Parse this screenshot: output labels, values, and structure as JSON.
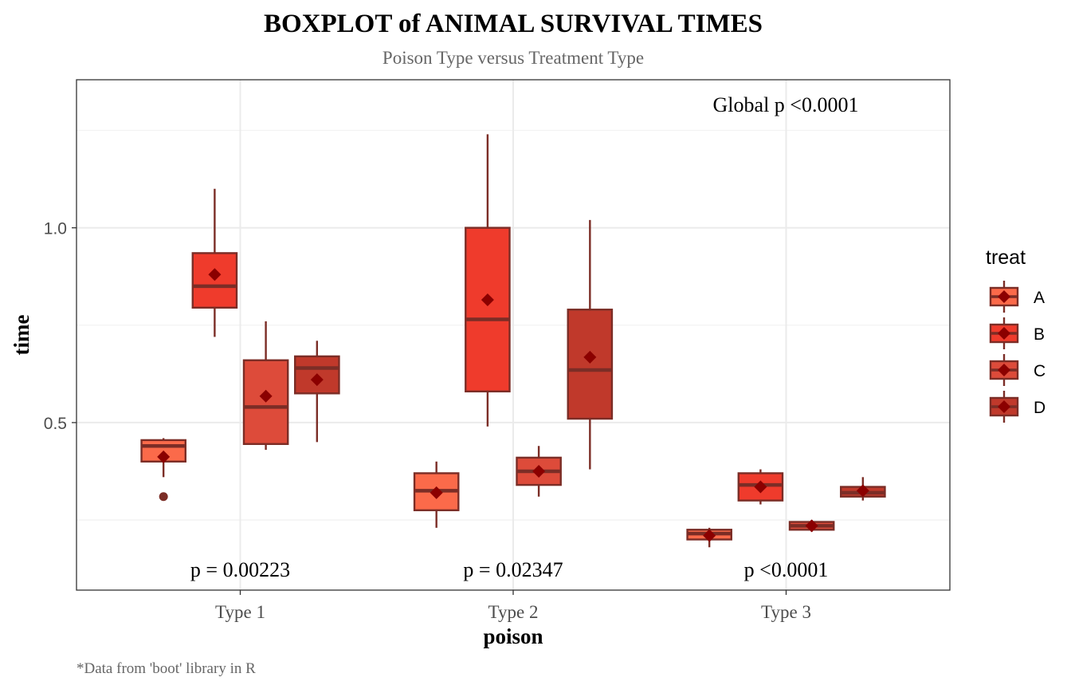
{
  "chart_data": {
    "type": "boxplot",
    "title": "BOXPLOT of ANIMAL SURVIVAL TIMES",
    "subtitle": "Poison Type versus Treatment Type",
    "xlabel": "poison",
    "ylabel": "time",
    "caption": "*Data from 'boot' library in R",
    "categories": [
      "Type 1",
      "Type 2",
      "Type 3"
    ],
    "y_ticks": [
      0.5,
      1.0
    ],
    "y_tick_labels": [
      "0.5",
      "1.0"
    ],
    "ylim": [
      0.07,
      1.38
    ],
    "grid": true,
    "legend": {
      "title": "treat",
      "position": "right",
      "entries": [
        "A",
        "B",
        "C",
        "D"
      ]
    },
    "colors": {
      "A": "#fb6a4a",
      "B": "#ef3b2c",
      "C": "#dd4b3a",
      "D": "#c0392b",
      "outline": "#7b2d26",
      "mean_marker": "#8b0000",
      "grid_major": "#ebebeb",
      "grid_minor": "#f2f2f2",
      "panel_border": "#333333",
      "axis_text": "#4d4d4d"
    },
    "annotations": {
      "global": "Global p <0.0001",
      "per_group": [
        "p = 0.00223",
        "p = 0.02347",
        "p <0.0001"
      ]
    },
    "series": [
      {
        "name": "A",
        "boxes": [
          {
            "category": "Type 1",
            "min": 0.36,
            "q1": 0.4,
            "median": 0.44,
            "q3": 0.455,
            "max": 0.46,
            "mean": 0.412,
            "outliers": [
              0.31
            ]
          },
          {
            "category": "Type 2",
            "min": 0.23,
            "q1": 0.275,
            "median": 0.325,
            "q3": 0.37,
            "max": 0.4,
            "mean": 0.32,
            "outliers": []
          },
          {
            "category": "Type 3",
            "min": 0.18,
            "q1": 0.2,
            "median": 0.215,
            "q3": 0.225,
            "max": 0.23,
            "mean": 0.21,
            "outliers": []
          }
        ]
      },
      {
        "name": "B",
        "boxes": [
          {
            "category": "Type 1",
            "min": 0.72,
            "q1": 0.795,
            "median": 0.85,
            "q3": 0.935,
            "max": 1.1,
            "mean": 0.88,
            "outliers": []
          },
          {
            "category": "Type 2",
            "min": 0.49,
            "q1": 0.58,
            "median": 0.765,
            "q3": 1.0,
            "max": 1.24,
            "mean": 0.815,
            "outliers": []
          },
          {
            "category": "Type 3",
            "min": 0.29,
            "q1": 0.3,
            "median": 0.34,
            "q3": 0.37,
            "max": 0.38,
            "mean": 0.335,
            "outliers": []
          }
        ]
      },
      {
        "name": "C",
        "boxes": [
          {
            "category": "Type 1",
            "min": 0.43,
            "q1": 0.445,
            "median": 0.54,
            "q3": 0.66,
            "max": 0.76,
            "mean": 0.568,
            "outliers": []
          },
          {
            "category": "Type 2",
            "min": 0.31,
            "q1": 0.34,
            "median": 0.375,
            "q3": 0.41,
            "max": 0.44,
            "mean": 0.375,
            "outliers": []
          },
          {
            "category": "Type 3",
            "min": 0.22,
            "q1": 0.225,
            "median": 0.235,
            "q3": 0.245,
            "max": 0.25,
            "mean": 0.235,
            "outliers": []
          }
        ]
      },
      {
        "name": "D",
        "boxes": [
          {
            "category": "Type 1",
            "min": 0.45,
            "q1": 0.575,
            "median": 0.64,
            "q3": 0.67,
            "max": 0.71,
            "mean": 0.61,
            "outliers": []
          },
          {
            "category": "Type 2",
            "min": 0.38,
            "q1": 0.51,
            "median": 0.635,
            "q3": 0.79,
            "max": 1.02,
            "mean": 0.668,
            "outliers": []
          },
          {
            "category": "Type 3",
            "min": 0.3,
            "q1": 0.31,
            "median": 0.32,
            "q3": 0.335,
            "max": 0.36,
            "mean": 0.325,
            "outliers": []
          }
        ]
      }
    ]
  }
}
